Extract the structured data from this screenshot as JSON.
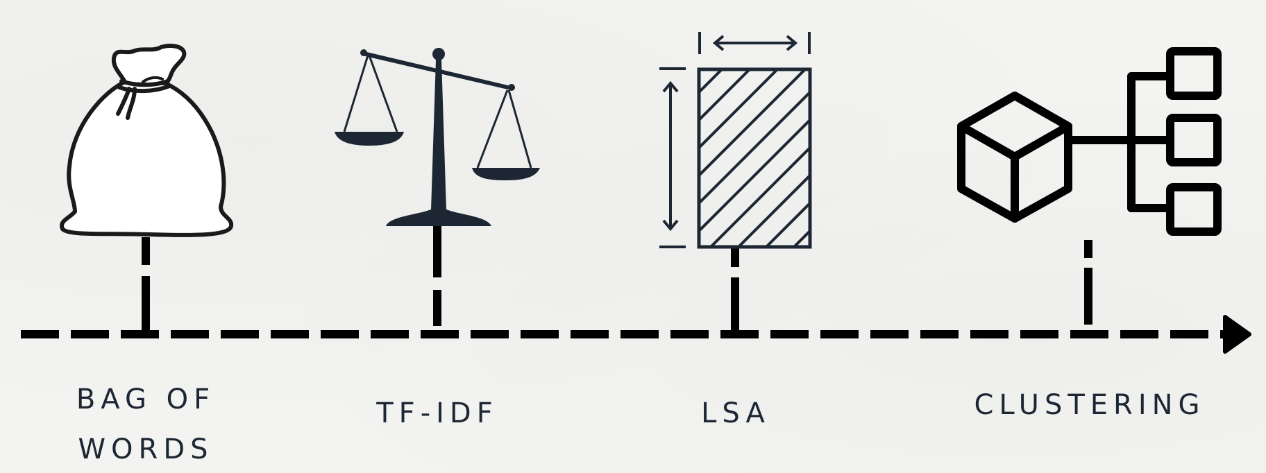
{
  "steps": [
    {
      "label_lines": [
        "BAG OF",
        "WORDS"
      ],
      "icon": "bag-icon"
    },
    {
      "label_lines": [
        "TF-IDF"
      ],
      "icon": "scale-icon"
    },
    {
      "label_lines": [
        "LSA"
      ],
      "icon": "matrix-icon"
    },
    {
      "label_lines": [
        "CLUSTERING"
      ],
      "icon": "cluster-tree-icon"
    }
  ],
  "colors": {
    "ink": "#1c2733",
    "line": "#000000",
    "background": "#f3f3f1"
  }
}
